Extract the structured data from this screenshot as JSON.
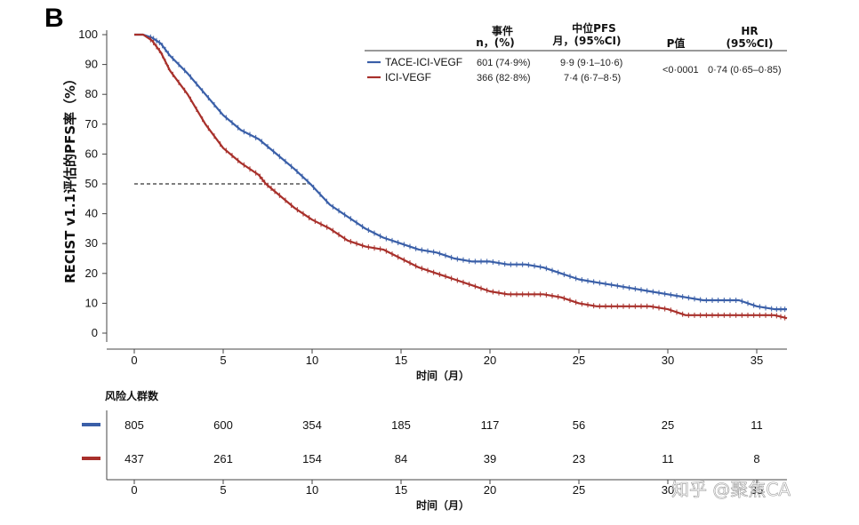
{
  "panel_label": "B",
  "chart_data": {
    "type": "line",
    "subtype": "kaplan-meier",
    "ylabel": "RECIST v1.1评估的PFS率（%）",
    "xlabel": "时间（月）",
    "xlim": [
      0,
      36.7
    ],
    "ylim": [
      0,
      100
    ],
    "x_ticks": [
      0,
      5,
      10,
      15,
      20,
      25,
      30,
      35
    ],
    "y_ticks": [
      0,
      10,
      20,
      30,
      40,
      50,
      60,
      70,
      80,
      90,
      100
    ],
    "median_reference": {
      "y": 50,
      "x_start": 0,
      "x_end": 9.9
    },
    "series": [
      {
        "name": "TACE-ICI-VEGF",
        "color": "#3a5fa8",
        "x": [
          0,
          0.5,
          1,
          1.5,
          2,
          3,
          4,
          5,
          6,
          7,
          8,
          9,
          9.9,
          11,
          12,
          13,
          14,
          15,
          16,
          17,
          18,
          19,
          20,
          21,
          22,
          23,
          24,
          25,
          26,
          27,
          28,
          29,
          30,
          31,
          32,
          33,
          34,
          35,
          36,
          36.7
        ],
        "y": [
          100,
          100,
          99,
          97,
          93,
          87,
          80,
          73,
          68,
          65,
          60,
          55,
          50,
          43,
          39,
          35,
          32,
          30,
          28,
          27,
          25,
          24,
          24,
          23,
          23,
          22,
          20,
          18,
          17,
          16,
          15,
          14,
          13,
          12,
          11,
          11,
          11,
          9,
          8,
          8
        ]
      },
      {
        "name": "ICI-VEGF",
        "color": "#a8302b",
        "x": [
          0,
          0.5,
          1,
          1.5,
          2,
          3,
          4,
          5,
          6,
          7,
          7.4,
          8,
          9,
          10,
          11,
          12,
          13,
          14,
          15,
          16,
          17,
          18,
          19,
          20,
          21,
          22,
          23,
          24,
          25,
          26,
          27,
          28,
          29,
          30,
          31,
          32,
          33,
          34,
          35,
          36,
          36.7
        ],
        "y": [
          100,
          100,
          98,
          94,
          88,
          80,
          70,
          62,
          57,
          53,
          50,
          47,
          42,
          38,
          35,
          31,
          29,
          28,
          25,
          22,
          20,
          18,
          16,
          14,
          13,
          13,
          13,
          12,
          10,
          9,
          9,
          9,
          9,
          8,
          6,
          6,
          6,
          6,
          6,
          6,
          5
        ]
      }
    ],
    "legend_table": {
      "headers": {
        "events_line1": "事件",
        "events_line2": "n，(%)",
        "median_line1": "中位PFS",
        "median_line2": "月，(95%CI)",
        "pvalue": "P值",
        "hr_line1": "HR",
        "hr_line2": "(95%CI)"
      },
      "rows": [
        {
          "label": "TACE-ICI-VEGF",
          "events": "601 (74·9%)",
          "median": "9·9 (9·1–10·6)"
        },
        {
          "label": "ICI-VEGF",
          "events": "366 (82·8%)",
          "median": "7·4 (6·7–8·5)"
        }
      ],
      "pvalue": "<0·0001",
      "hr": "0·74 (0·65–0·85)"
    },
    "risk_table": {
      "title": "风险人群数",
      "times": [
        0,
        5,
        10,
        15,
        20,
        25,
        30,
        35
      ],
      "rows": [
        {
          "series": "TACE-ICI-VEGF",
          "color": "#3a5fa8",
          "values": [
            "805",
            "600",
            "354",
            "185",
            "117",
            "56",
            "25",
            "11"
          ]
        },
        {
          "series": "ICI-VEGF",
          "color": "#a8302b",
          "values": [
            "437",
            "261",
            "154",
            "84",
            "39",
            "23",
            "11",
            "8"
          ]
        }
      ],
      "xlabel": "时间（月）"
    }
  },
  "watermark": "知乎 @聚焦CA"
}
